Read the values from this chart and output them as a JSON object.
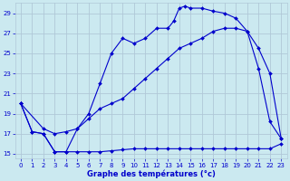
{
  "title": "Graphe des températures (°c)",
  "background_color": "#cbe9f0",
  "grid_color": "#b0c8d8",
  "line_color": "#0000cc",
  "xlim": [
    -0.5,
    23.5
  ],
  "ylim": [
    14.5,
    30.0
  ],
  "yticks": [
    15,
    17,
    19,
    21,
    23,
    25,
    27,
    29
  ],
  "xticks": [
    0,
    1,
    2,
    3,
    4,
    5,
    6,
    7,
    8,
    9,
    10,
    11,
    12,
    13,
    14,
    15,
    16,
    17,
    18,
    19,
    20,
    21,
    22,
    23
  ],
  "curve1_x": [
    0,
    1,
    2,
    3,
    4,
    5,
    6,
    7,
    8,
    9,
    10,
    11,
    12,
    13,
    14,
    15,
    16,
    17,
    18,
    19,
    20,
    21,
    22,
    23
  ],
  "curve1_y": [
    20.0,
    17.2,
    17.0,
    15.2,
    15.2,
    15.2,
    15.2,
    15.2,
    15.3,
    15.4,
    15.5,
    15.5,
    15.5,
    15.5,
    15.5,
    15.5,
    15.5,
    15.5,
    15.5,
    15.5,
    15.5,
    15.5,
    15.5,
    16.0
  ],
  "curve2_x": [
    0,
    2,
    3,
    4,
    5,
    6,
    7,
    8,
    9,
    10,
    11,
    12,
    13,
    14,
    15,
    16,
    17,
    18,
    19,
    20,
    21,
    22,
    23
  ],
  "curve2_y": [
    20.0,
    17.5,
    17.0,
    17.2,
    17.5,
    18.5,
    19.5,
    20.0,
    20.5,
    21.5,
    22.5,
    23.5,
    24.5,
    25.5,
    26.0,
    26.5,
    27.2,
    27.5,
    27.5,
    27.2,
    25.5,
    23.0,
    16.5
  ],
  "curve3_x": [
    0,
    1,
    2,
    3,
    4,
    5,
    6,
    7,
    8,
    9,
    10,
    11,
    12,
    13,
    13.5,
    14,
    14.5,
    15,
    16,
    17,
    18,
    19,
    20,
    21,
    22,
    23
  ],
  "curve3_y": [
    20.0,
    17.2,
    17.0,
    15.2,
    15.2,
    17.5,
    19.0,
    22.0,
    25.0,
    26.5,
    26.0,
    26.5,
    27.5,
    27.5,
    28.2,
    29.5,
    29.7,
    29.5,
    29.5,
    29.2,
    29.0,
    28.5,
    27.2,
    23.5,
    18.2,
    16.5
  ]
}
